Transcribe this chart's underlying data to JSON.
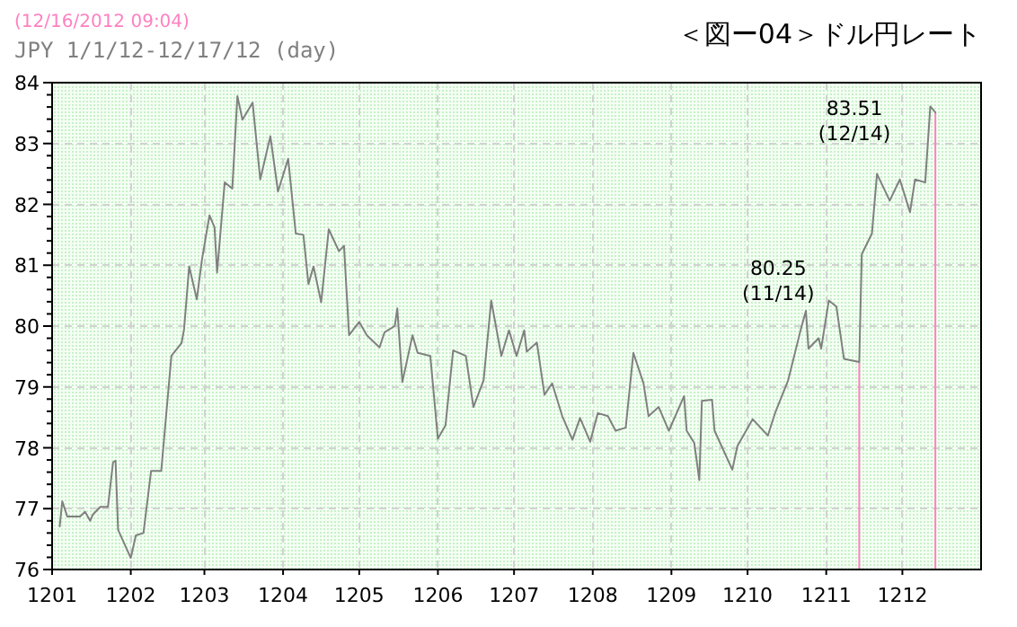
{
  "chart_data": {
    "type": "line",
    "title": "＜図ー04＞ドル円レート",
    "subtitle": "JPY 1/1/12-12/17/12 (day)",
    "annotations": [
      "(12/16/2012 09:04)",
      {
        "text": "80.25\n(11/14)",
        "x": "2012-11-14",
        "y": 80.25
      },
      {
        "text": "83.51\n(12/14)",
        "x": "2012-12-14",
        "y": 83.51
      }
    ],
    "xlim": [
      "2012-01-01",
      "2013-01-01"
    ],
    "xticks": [
      {
        "value": "2012-01-01",
        "label": "1201"
      },
      {
        "value": "2012-02-01",
        "label": "1202"
      },
      {
        "value": "2012-03-01",
        "label": "1203"
      },
      {
        "value": "2012-04-01",
        "label": "1204"
      },
      {
        "value": "2012-05-01",
        "label": "1205"
      },
      {
        "value": "2012-06-01",
        "label": "1206"
      },
      {
        "value": "2012-07-01",
        "label": "1207"
      },
      {
        "value": "2012-08-01",
        "label": "1208"
      },
      {
        "value": "2012-09-01",
        "label": "1209"
      },
      {
        "value": "2012-10-01",
        "label": "1210"
      },
      {
        "value": "2012-11-01",
        "label": "1211"
      },
      {
        "value": "2012-12-01",
        "label": "1212"
      }
    ],
    "ylim": [
      76,
      84
    ],
    "yticks": [
      76,
      {
        "value": 76.2,
        "label": null
      },
      {
        "value": 76.4,
        "label": null
      },
      {
        "value": 76.6,
        "label": null
      },
      {
        "value": 76.8,
        "label": null
      },
      77,
      {
        "value": 77.2,
        "label": null
      },
      {
        "value": 77.4,
        "label": null
      },
      {
        "value": 77.6,
        "label": null
      },
      {
        "value": 77.8,
        "label": null
      },
      78,
      {
        "value": 78.2,
        "label": null
      },
      {
        "value": 78.4,
        "label": null
      },
      {
        "value": 78.6,
        "label": null
      },
      {
        "value": 78.8,
        "label": null
      },
      79,
      {
        "value": 79.2,
        "label": null
      },
      {
        "value": 79.4,
        "label": null
      },
      {
        "value": 79.6,
        "label": null
      },
      {
        "value": 79.8,
        "label": null
      },
      80,
      {
        "value": 80.2,
        "label": null
      },
      {
        "value": 80.4,
        "label": null
      },
      {
        "value": 80.6,
        "label": null
      },
      {
        "value": 80.8,
        "label": null
      },
      81,
      {
        "value": 81.2,
        "label": null
      },
      {
        "value": 81.4,
        "label": null
      },
      {
        "value": 81.6,
        "label": null
      },
      {
        "value": 81.8,
        "label": null
      },
      82,
      {
        "value": 82.2,
        "label": null
      },
      {
        "value": 82.4,
        "label": null
      },
      {
        "value": 82.6,
        "label": null
      },
      {
        "value": 82.8,
        "label": null
      },
      83,
      {
        "value": 83.2,
        "label": null
      },
      {
        "value": 83.4,
        "label": null
      },
      {
        "value": 83.6,
        "label": null
      },
      {
        "value": 83.8,
        "label": null
      },
      84
    ],
    "grid": true,
    "line_style": "solid",
    "ref_lines": [
      {
        "axis": "x",
        "value": "2012-11-14",
        "label": null,
        "color": "#ff80c0"
      },
      {
        "axis": "x",
        "value": "2012-12-14",
        "label": null,
        "color": "#ff80c0"
      }
    ],
    "series": [
      {
        "color": "#808080",
        "x": [
          "2012-01-04",
          "2012-01-05",
          "2012-01-07",
          "2012-01-12",
          "2012-01-14",
          "2012-01-16",
          "2012-01-17",
          "2012-01-20",
          "2012-01-23",
          "2012-01-25",
          "2012-01-26",
          "2012-01-27",
          "2012-02-01",
          "2012-02-03",
          "2012-02-06",
          "2012-02-09",
          "2012-02-13",
          "2012-02-17",
          "2012-02-21",
          "2012-02-22",
          "2012-02-24",
          "2012-02-27",
          "2012-02-29",
          "2012-03-03",
          "2012-03-05",
          "2012-03-06",
          "2012-03-09",
          "2012-03-12",
          "2012-03-14",
          "2012-03-16",
          "2012-03-20",
          "2012-03-23",
          "2012-03-27",
          "2012-03-30",
          "2012-04-03",
          "2012-04-06",
          "2012-04-09",
          "2012-04-11",
          "2012-04-13",
          "2012-04-16",
          "2012-04-19",
          "2012-04-23",
          "2012-04-25",
          "2012-04-27",
          "2012-05-01",
          "2012-05-04",
          "2012-05-09",
          "2012-05-11",
          "2012-05-15",
          "2012-05-16",
          "2012-05-18",
          "2012-05-22",
          "2012-05-24",
          "2012-05-29",
          "2012-06-01",
          "2012-06-04",
          "2012-06-07",
          "2012-06-12",
          "2012-06-15",
          "2012-06-19",
          "2012-06-22",
          "2012-06-26",
          "2012-06-29",
          "2012-07-02",
          "2012-07-05",
          "2012-07-06",
          "2012-07-10",
          "2012-07-13",
          "2012-07-16",
          "2012-07-20",
          "2012-07-24",
          "2012-07-27",
          "2012-07-31",
          "2012-08-03",
          "2012-08-07",
          "2012-08-10",
          "2012-08-14",
          "2012-08-17",
          "2012-08-21",
          "2012-08-23",
          "2012-08-27",
          "2012-08-31",
          "2012-09-06",
          "2012-09-07",
          "2012-09-10",
          "2012-09-12",
          "2012-09-13",
          "2012-09-17",
          "2012-09-18",
          "2012-09-25",
          "2012-09-27",
          "2012-10-03",
          "2012-10-09",
          "2012-10-12",
          "2012-10-17",
          "2012-10-22",
          "2012-10-24",
          "2012-10-25",
          "2012-10-29",
          "2012-10-30",
          "2012-11-02",
          "2012-11-05",
          "2012-11-08",
          "2012-11-14",
          "2012-11-15",
          "2012-11-19",
          "2012-11-21",
          "2012-11-26",
          "2012-11-30",
          "2012-12-04",
          "2012-12-06",
          "2012-12-10",
          "2012-12-12",
          "2012-12-14"
        ],
        "values": [
          76.71,
          77.12,
          76.87,
          76.87,
          76.95,
          76.8,
          76.9,
          77.03,
          77.03,
          77.76,
          77.79,
          76.65,
          76.19,
          76.56,
          76.6,
          77.62,
          77.62,
          79.51,
          79.72,
          79.95,
          80.98,
          80.44,
          81.08,
          81.82,
          81.62,
          80.88,
          82.36,
          82.26,
          83.78,
          83.39,
          83.67,
          82.41,
          83.12,
          82.21,
          82.75,
          81.52,
          81.5,
          80.69,
          80.98,
          80.39,
          81.59,
          81.23,
          81.32,
          79.85,
          80.07,
          79.85,
          79.65,
          79.9,
          80.0,
          80.29,
          79.08,
          79.85,
          79.56,
          79.51,
          78.15,
          78.37,
          79.6,
          79.51,
          78.67,
          79.11,
          80.42,
          79.51,
          79.93,
          79.51,
          79.93,
          79.58,
          79.73,
          78.87,
          79.06,
          78.52,
          78.13,
          78.49,
          78.1,
          78.57,
          78.52,
          78.28,
          78.33,
          79.56,
          79.06,
          78.52,
          78.67,
          78.28,
          78.85,
          78.28,
          78.08,
          77.47,
          78.77,
          78.79,
          78.28,
          77.64,
          78.03,
          78.47,
          78.2,
          78.59,
          79.11,
          79.95,
          80.25,
          79.63,
          79.8,
          79.63,
          80.42,
          80.32,
          79.46,
          79.41,
          81.18,
          81.52,
          82.5,
          82.06,
          82.41,
          81.87,
          82.41,
          82.36,
          83.61,
          83.51
        ]
      }
    ]
  }
}
